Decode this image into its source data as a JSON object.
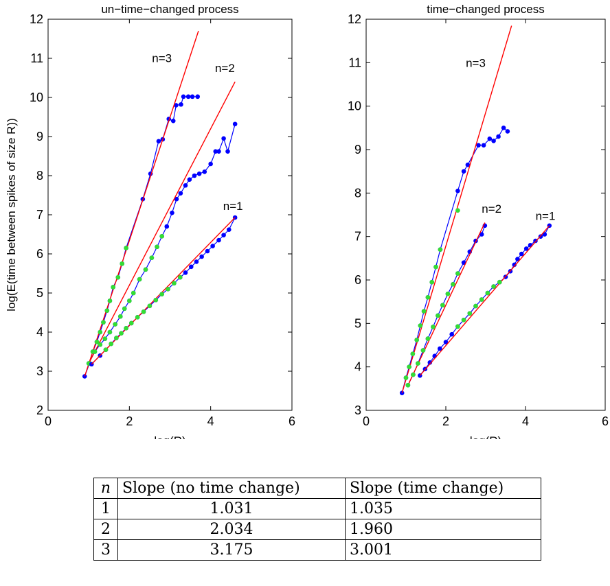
{
  "chart_data": [
    {
      "type": "line",
      "title": "un−time−changed process",
      "xlabel": "log(R)",
      "ylabel": "log(E(time between spikes of size R))",
      "xlim": [
        0,
        6
      ],
      "ylim": [
        2,
        12
      ],
      "xticks": [
        "0",
        "2",
        "4",
        "6"
      ],
      "yticks": [
        "2",
        "3",
        "4",
        "5",
        "6",
        "7",
        "8",
        "9",
        "10",
        "11",
        "12"
      ],
      "colors": {
        "data": "#0000ff",
        "fit": "#ff0000",
        "fit_points": "#33dd33"
      },
      "grid": false,
      "series": [
        {
          "name": "n=3",
          "points": [
            [
              0.9,
              2.87
            ],
            [
              1.02,
              3.2
            ],
            [
              1.1,
              3.5
            ],
            [
              1.2,
              3.75
            ],
            [
              1.28,
              4.0
            ],
            [
              1.36,
              4.25
            ],
            [
              1.45,
              4.55
            ],
            [
              1.52,
              4.8
            ],
            [
              1.6,
              5.15
            ],
            [
              1.72,
              5.4
            ],
            [
              1.82,
              5.75
            ],
            [
              1.92,
              6.15
            ],
            [
              2.33,
              7.4
            ],
            [
              2.52,
              8.05
            ],
            [
              2.72,
              8.88
            ],
            [
              2.82,
              8.93
            ],
            [
              2.97,
              9.45
            ],
            [
              3.08,
              9.4
            ],
            [
              3.15,
              9.8
            ],
            [
              3.27,
              9.82
            ],
            [
              3.33,
              10.02
            ],
            [
              3.45,
              10.02
            ],
            [
              3.55,
              10.02
            ],
            [
              3.68,
              10.02
            ]
          ],
          "green_points": [
            [
              1.02,
              3.2
            ],
            [
              1.1,
              3.5
            ],
            [
              1.2,
              3.75
            ],
            [
              1.28,
              4.0
            ],
            [
              1.36,
              4.25
            ],
            [
              1.45,
              4.55
            ],
            [
              1.52,
              4.8
            ],
            [
              1.6,
              5.15
            ],
            [
              1.72,
              5.4
            ],
            [
              1.82,
              5.75
            ],
            [
              1.92,
              6.15
            ]
          ],
          "fit": [
            [
              0.9,
              2.87
            ],
            [
              3.7,
              11.7
            ]
          ],
          "slope_label_pos": [
            2.8,
            10.9
          ]
        },
        {
          "name": "n=2",
          "points": [
            [
              1.0,
              3.2
            ],
            [
              1.15,
              3.5
            ],
            [
              1.28,
              3.68
            ],
            [
              1.4,
              3.83
            ],
            [
              1.52,
              4.0
            ],
            [
              1.65,
              4.2
            ],
            [
              1.78,
              4.4
            ],
            [
              1.88,
              4.6
            ],
            [
              2.0,
              4.8
            ],
            [
              2.1,
              5.0
            ],
            [
              2.25,
              5.35
            ],
            [
              2.4,
              5.6
            ],
            [
              2.55,
              5.9
            ],
            [
              2.68,
              6.18
            ],
            [
              2.8,
              6.45
            ],
            [
              2.92,
              6.7
            ],
            [
              3.05,
              7.05
            ],
            [
              3.16,
              7.4
            ],
            [
              3.26,
              7.55
            ],
            [
              3.38,
              7.75
            ],
            [
              3.48,
              7.9
            ],
            [
              3.6,
              8.0
            ],
            [
              3.72,
              8.05
            ],
            [
              3.85,
              8.1
            ],
            [
              4.0,
              8.3
            ],
            [
              4.12,
              8.62
            ],
            [
              4.2,
              8.62
            ],
            [
              4.32,
              8.95
            ],
            [
              4.42,
              8.62
            ],
            [
              4.6,
              9.32
            ]
          ],
          "green_points": [
            [
              1.0,
              3.2
            ],
            [
              1.15,
              3.5
            ],
            [
              1.28,
              3.68
            ],
            [
              1.4,
              3.83
            ],
            [
              1.52,
              4.0
            ],
            [
              1.65,
              4.2
            ],
            [
              1.78,
              4.4
            ],
            [
              1.88,
              4.6
            ],
            [
              2.0,
              4.8
            ],
            [
              2.1,
              5.0
            ],
            [
              2.25,
              5.35
            ],
            [
              2.4,
              5.6
            ],
            [
              2.55,
              5.9
            ],
            [
              2.68,
              6.18
            ],
            [
              2.8,
              6.45
            ]
          ],
          "fit": [
            [
              1.0,
              3.2
            ],
            [
              4.6,
              10.4
            ]
          ],
          "slope_label_pos": [
            4.35,
            10.65
          ]
        },
        {
          "name": "n=1",
          "points": [
            [
              1.07,
              3.18
            ],
            [
              1.28,
              3.4
            ],
            [
              1.42,
              3.55
            ],
            [
              1.55,
              3.7
            ],
            [
              1.68,
              3.85
            ],
            [
              1.8,
              3.97
            ],
            [
              1.92,
              4.1
            ],
            [
              2.05,
              4.23
            ],
            [
              2.2,
              4.38
            ],
            [
              2.35,
              4.52
            ],
            [
              2.5,
              4.67
            ],
            [
              2.65,
              4.82
            ],
            [
              2.8,
              4.97
            ],
            [
              2.95,
              5.1
            ],
            [
              3.1,
              5.25
            ],
            [
              3.25,
              5.4
            ],
            [
              3.38,
              5.52
            ],
            [
              3.52,
              5.67
            ],
            [
              3.65,
              5.8
            ],
            [
              3.78,
              5.93
            ],
            [
              3.92,
              6.07
            ],
            [
              4.05,
              6.2
            ],
            [
              4.2,
              6.35
            ],
            [
              4.32,
              6.48
            ],
            [
              4.45,
              6.62
            ],
            [
              4.6,
              6.93
            ]
          ],
          "green_points": [
            [
              1.42,
              3.55
            ],
            [
              1.55,
              3.7
            ],
            [
              1.68,
              3.85
            ],
            [
              1.8,
              3.97
            ],
            [
              1.92,
              4.1
            ],
            [
              2.05,
              4.23
            ],
            [
              2.2,
              4.38
            ],
            [
              2.35,
              4.52
            ],
            [
              2.5,
              4.67
            ],
            [
              2.65,
              4.82
            ],
            [
              2.8,
              4.97
            ],
            [
              2.95,
              5.1
            ],
            [
              3.1,
              5.25
            ],
            [
              3.25,
              5.4
            ]
          ],
          "fit": [
            [
              1.07,
              3.18
            ],
            [
              4.6,
              6.93
            ]
          ],
          "slope_label_pos": [
            4.55,
            7.12
          ]
        }
      ]
    },
    {
      "type": "line",
      "title": "time−changed process",
      "xlabel": "log(R)",
      "ylabel": "",
      "xlim": [
        0,
        6
      ],
      "ylim": [
        3,
        12
      ],
      "xticks": [
        "0",
        "2",
        "4",
        "6"
      ],
      "yticks": [
        "3",
        "4",
        "5",
        "6",
        "7",
        "8",
        "9",
        "10",
        "11",
        "12"
      ],
      "colors": {
        "data": "#0000ff",
        "fit": "#ff0000",
        "fit_points": "#33dd33"
      },
      "grid": false,
      "series": [
        {
          "name": "n=3",
          "points": [
            [
              0.9,
              3.4
            ],
            [
              1.0,
              3.75
            ],
            [
              1.08,
              4.0
            ],
            [
              1.17,
              4.3
            ],
            [
              1.27,
              4.62
            ],
            [
              1.36,
              4.95
            ],
            [
              1.45,
              5.28
            ],
            [
              1.55,
              5.6
            ],
            [
              1.65,
              5.95
            ],
            [
              1.75,
              6.3
            ],
            [
              1.86,
              6.7
            ],
            [
              2.3,
              8.05
            ],
            [
              2.45,
              8.5
            ],
            [
              2.55,
              8.65
            ],
            [
              2.82,
              9.1
            ],
            [
              2.95,
              9.1
            ],
            [
              3.1,
              9.25
            ],
            [
              3.2,
              9.2
            ],
            [
              3.32,
              9.3
            ],
            [
              3.45,
              9.5
            ],
            [
              3.55,
              9.42
            ]
          ],
          "green_points": [
            [
              1.0,
              3.75
            ],
            [
              1.08,
              4.0
            ],
            [
              1.17,
              4.3
            ],
            [
              1.27,
              4.62
            ],
            [
              1.36,
              4.95
            ],
            [
              1.45,
              5.28
            ],
            [
              1.55,
              5.6
            ],
            [
              1.65,
              5.95
            ],
            [
              1.75,
              6.3
            ],
            [
              1.86,
              6.7
            ],
            [
              2.3,
              7.6
            ]
          ],
          "fit": [
            [
              0.9,
              3.4
            ],
            [
              3.65,
              11.85
            ]
          ],
          "slope_label_pos": [
            2.75,
            10.9
          ]
        },
        {
          "name": "n=2",
          "points": [
            [
              1.05,
              3.58
            ],
            [
              1.18,
              3.82
            ],
            [
              1.3,
              4.08
            ],
            [
              1.43,
              4.38
            ],
            [
              1.55,
              4.65
            ],
            [
              1.68,
              4.92
            ],
            [
              1.8,
              5.18
            ],
            [
              1.92,
              5.42
            ],
            [
              2.05,
              5.68
            ],
            [
              2.18,
              5.9
            ],
            [
              2.3,
              6.15
            ],
            [
              2.45,
              6.4
            ],
            [
              2.6,
              6.65
            ],
            [
              2.75,
              6.9
            ],
            [
              2.9,
              7.05
            ],
            [
              2.98,
              7.25
            ]
          ],
          "green_points": [
            [
              1.05,
              3.58
            ],
            [
              1.18,
              3.82
            ],
            [
              1.3,
              4.08
            ],
            [
              1.43,
              4.38
            ],
            [
              1.55,
              4.65
            ],
            [
              1.68,
              4.92
            ],
            [
              1.8,
              5.18
            ],
            [
              1.92,
              5.42
            ],
            [
              2.05,
              5.68
            ],
            [
              2.18,
              5.9
            ],
            [
              2.3,
              6.15
            ]
          ],
          "fit": [
            [
              1.05,
              3.58
            ],
            [
              2.98,
              7.32
            ]
          ],
          "slope_label_pos": [
            3.15,
            7.55
          ]
        },
        {
          "name": "n=1",
          "points": [
            [
              1.35,
              3.8
            ],
            [
              1.48,
              3.95
            ],
            [
              1.6,
              4.1
            ],
            [
              1.72,
              4.25
            ],
            [
              1.85,
              4.42
            ],
            [
              2.0,
              4.57
            ],
            [
              2.15,
              4.75
            ],
            [
              2.3,
              4.93
            ],
            [
              2.45,
              5.08
            ],
            [
              2.6,
              5.23
            ],
            [
              2.75,
              5.4
            ],
            [
              2.9,
              5.55
            ],
            [
              3.05,
              5.7
            ],
            [
              3.2,
              5.85
            ],
            [
              3.35,
              5.95
            ],
            [
              3.5,
              6.07
            ],
            [
              3.62,
              6.2
            ],
            [
              3.72,
              6.35
            ],
            [
              3.8,
              6.48
            ],
            [
              3.9,
              6.6
            ],
            [
              4.02,
              6.72
            ],
            [
              4.12,
              6.8
            ],
            [
              4.25,
              6.9
            ],
            [
              4.38,
              7.0
            ],
            [
              4.48,
              7.05
            ],
            [
              4.6,
              7.25
            ]
          ],
          "green_points": [
            [
              2.3,
              4.93
            ],
            [
              2.45,
              5.08
            ],
            [
              2.6,
              5.23
            ],
            [
              2.75,
              5.4
            ],
            [
              2.9,
              5.55
            ],
            [
              3.05,
              5.7
            ],
            [
              3.2,
              5.85
            ],
            [
              3.35,
              5.95
            ]
          ],
          "fit": [
            [
              1.35,
              3.8
            ],
            [
              4.6,
              7.25
            ]
          ],
          "slope_label_pos": [
            4.5,
            7.38
          ]
        }
      ]
    }
  ],
  "table": {
    "headers": [
      "n",
      "Slope (no time change)",
      "Slope (time change)"
    ],
    "rows": [
      [
        "1",
        "1.031",
        "1.035"
      ],
      [
        "2",
        "2.034",
        "1.960"
      ],
      [
        "3",
        "3.175",
        "3.001"
      ]
    ]
  }
}
